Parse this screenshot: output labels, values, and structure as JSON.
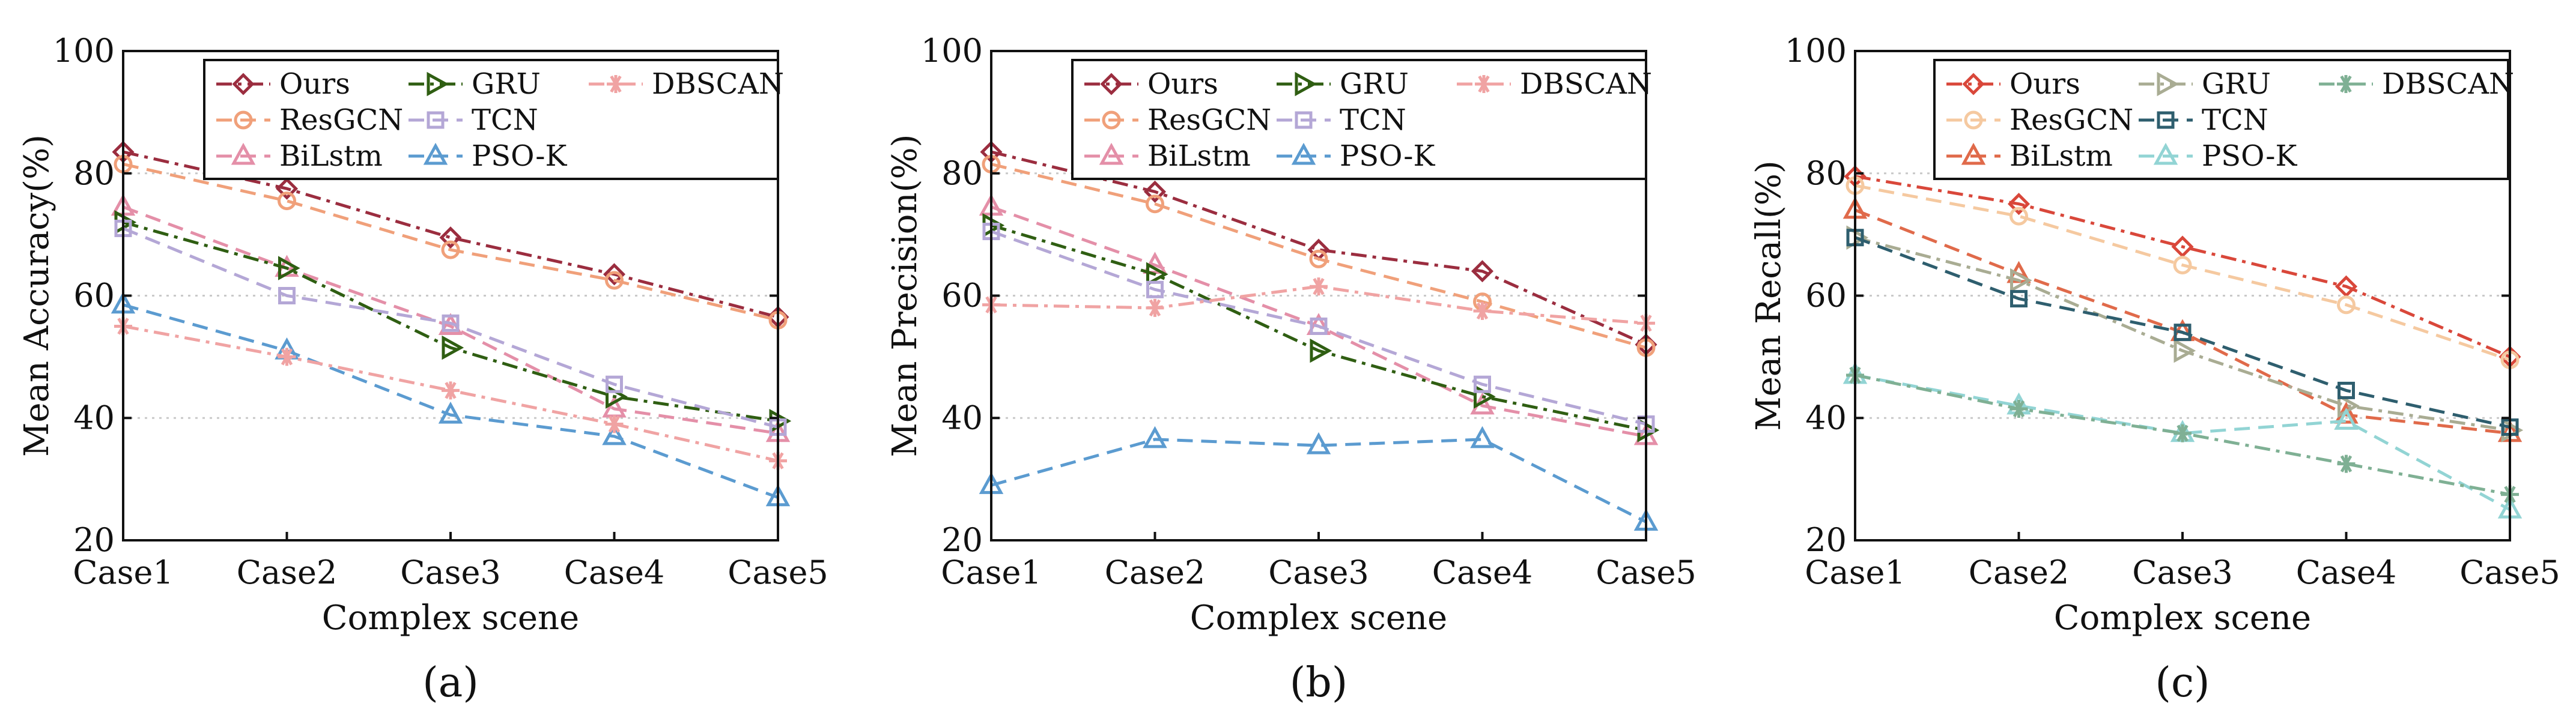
{
  "chart_data": [
    {
      "type": "line",
      "panel_label": "(a)",
      "xlabel": "Complex scene",
      "ylabel": "Mean Accuracy(%)",
      "ylim": [
        20,
        100
      ],
      "yticks": [
        20,
        40,
        60,
        80,
        100
      ],
      "categories": [
        "Case1",
        "Case2",
        "Case3",
        "Case4",
        "Case5"
      ],
      "grid": "horizontal dotted",
      "legend_position": "top-right",
      "series": [
        {
          "name": "Ours",
          "marker": "diamond",
          "color": "#9b2d3f",
          "dash": "dashdot",
          "values": [
            83.5,
            77.5,
            69.5,
            63.5,
            56.5
          ]
        },
        {
          "name": "ResGCN",
          "marker": "circle",
          "color": "#f0a07a",
          "dash": "dash",
          "values": [
            81.5,
            75.5,
            67.5,
            62.5,
            56
          ]
        },
        {
          "name": "BiLstm",
          "marker": "triangle-up",
          "color": "#e48fa8",
          "dash": "dash",
          "values": [
            74.5,
            64.5,
            55,
            41.5,
            37.5
          ]
        },
        {
          "name": "GRU",
          "marker": "triangle-right",
          "color": "#2f5e12",
          "dash": "dashdot",
          "values": [
            72,
            64.5,
            51.5,
            43.5,
            39.5
          ]
        },
        {
          "name": "TCN",
          "marker": "square",
          "color": "#b4a7d6",
          "dash": "dash",
          "values": [
            71,
            60,
            55.5,
            45.5,
            38.5
          ]
        },
        {
          "name": "PSO-K",
          "marker": "triangle-up",
          "color": "#5b9bd0",
          "dash": "dash",
          "values": [
            58.5,
            51,
            40.5,
            37,
            27
          ]
        },
        {
          "name": "DBSCAN",
          "marker": "asterisk",
          "color": "#f0a3a3",
          "dash": "dashdot",
          "values": [
            55,
            50,
            44.5,
            39,
            33
          ]
        }
      ]
    },
    {
      "type": "line",
      "panel_label": "(b)",
      "xlabel": "Complex scene",
      "ylabel": "Mean Precision(%)",
      "ylim": [
        20,
        100
      ],
      "yticks": [
        20,
        40,
        60,
        80,
        100
      ],
      "categories": [
        "Case1",
        "Case2",
        "Case3",
        "Case4",
        "Case5"
      ],
      "grid": "horizontal dotted",
      "legend_position": "top-right",
      "series": [
        {
          "name": "Ours",
          "marker": "diamond",
          "color": "#9b2d3f",
          "dash": "dashdot",
          "values": [
            83.5,
            77,
            67.5,
            64,
            52
          ]
        },
        {
          "name": "ResGCN",
          "marker": "circle",
          "color": "#f0a07a",
          "dash": "dash",
          "values": [
            81.5,
            75,
            66,
            59,
            51.5
          ]
        },
        {
          "name": "BiLstm",
          "marker": "triangle-up",
          "color": "#e48fa8",
          "dash": "dash",
          "values": [
            74.5,
            65,
            55,
            42,
            37
          ]
        },
        {
          "name": "GRU",
          "marker": "triangle-right",
          "color": "#2f5e12",
          "dash": "dashdot",
          "values": [
            71.5,
            63.5,
            51,
            43.5,
            38
          ]
        },
        {
          "name": "TCN",
          "marker": "square",
          "color": "#b4a7d6",
          "dash": "dash",
          "values": [
            70.5,
            61,
            55,
            45.5,
            39
          ]
        },
        {
          "name": "PSO-K",
          "marker": "triangle-up",
          "color": "#5b9bd0",
          "dash": "dash",
          "values": [
            29,
            36.5,
            35.5,
            36.5,
            23
          ]
        },
        {
          "name": "DBSCAN",
          "marker": "asterisk",
          "color": "#f0a3a3",
          "dash": "dashdot",
          "values": [
            58.5,
            58,
            61.5,
            57.5,
            55.5
          ]
        }
      ]
    },
    {
      "type": "line",
      "panel_label": "(c)",
      "xlabel": "Complex scene",
      "ylabel": "Mean Recall(%)",
      "ylim": [
        20,
        100
      ],
      "yticks": [
        20,
        40,
        60,
        80,
        100
      ],
      "categories": [
        "Case1",
        "Case2",
        "Case3",
        "Case4",
        "Case5"
      ],
      "grid": "horizontal dotted",
      "legend_position": "top-right",
      "series": [
        {
          "name": "Ours",
          "marker": "diamond",
          "color": "#d9473a",
          "dash": "dashdot",
          "values": [
            79.5,
            75,
            68,
            61.5,
            50
          ]
        },
        {
          "name": "ResGCN",
          "marker": "circle",
          "color": "#f5c9a0",
          "dash": "dash",
          "values": [
            78,
            73,
            65,
            58.5,
            49.5
          ]
        },
        {
          "name": "BiLstm",
          "marker": "triangle-up",
          "color": "#e06a4a",
          "dash": "dash",
          "values": [
            74,
            63.5,
            54,
            40.5,
            37.5
          ]
        },
        {
          "name": "GRU",
          "marker": "triangle-right",
          "color": "#a9ac93",
          "dash": "dashdot",
          "values": [
            69.5,
            62.5,
            51,
            42,
            38
          ]
        },
        {
          "name": "TCN",
          "marker": "square",
          "color": "#2e5e6e",
          "dash": "dash",
          "values": [
            69.5,
            59.5,
            54,
            44.5,
            38.5
          ]
        },
        {
          "name": "PSO-K",
          "marker": "triangle-up",
          "color": "#92d4d4",
          "dash": "dash",
          "values": [
            47,
            42,
            37.5,
            39.5,
            25
          ]
        },
        {
          "name": "DBSCAN",
          "marker": "asterisk",
          "color": "#7fb094",
          "dash": "dashdot",
          "values": [
            47,
            41.5,
            37.5,
            32.5,
            27.5
          ]
        }
      ]
    }
  ]
}
